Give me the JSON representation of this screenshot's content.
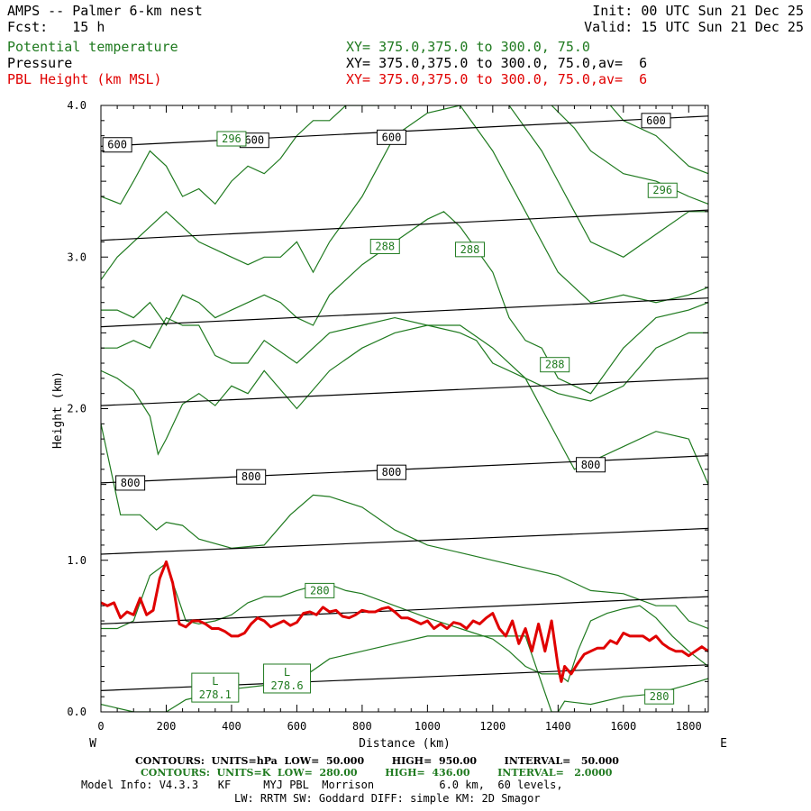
{
  "header": {
    "title": "AMPS -- Palmer 6-km nest",
    "fcst": "Fcst:   15 h",
    "init": "Init: 00 UTC Sun 21 Dec 25",
    "valid": "Valid: 15 UTC Sun 21 Dec 25",
    "fields": [
      {
        "name": "Potential temperature",
        "xy": "XY= 375.0,375.0 to 300.0, 75.0",
        "color": "#1f7a1f"
      },
      {
        "name": "Pressure",
        "xy": "XY= 375.0,375.0 to 300.0, 75.0,av=  6",
        "color": "#000000"
      },
      {
        "name": "PBL Height (km MSL)",
        "xy": "XY= 375.0,375.0 to 300.0, 75.0,av=  6",
        "color": "#e00000"
      }
    ]
  },
  "footer": {
    "contours_pressure": "CONTOURS:  UNITS=hPa  LOW=  50.000        HIGH=  950.00        INTERVAL=   50.000",
    "contours_theta": "CONTOURS:  UNITS=K  LOW=  280.00        HIGH=  436.00        INTERVAL=   2.0000",
    "model_info": "Model Info: V4.3.3   KF     MYJ PBL  Morrison          6.0 km,  60 levels,",
    "model_info2": "LW: RRTM SW: Goddard DIFF: simple KM: 2D Smagor"
  },
  "chart_data": {
    "type": "line",
    "xlabel": "Distance (km)",
    "ylabel": "Height (km)",
    "xlim": [
      0,
      1860
    ],
    "ylim": [
      0,
      4.0
    ],
    "xticks": [
      0,
      200,
      400,
      600,
      800,
      1000,
      1200,
      1400,
      1600,
      1800
    ],
    "yticks": [
      0.0,
      1.0,
      2.0,
      3.0,
      4.0
    ],
    "ytick_labels": [
      "0.0",
      "1.0",
      "2.0",
      "3.0",
      "4.0"
    ],
    "left_end_label": "W",
    "right_end_label": "E",
    "colors": {
      "theta": "#1f7a1f",
      "pressure": "#000000",
      "pbl": "#e00000"
    },
    "pressure_isobars": [
      {
        "value": 950,
        "x": [
          0,
          1860
        ],
        "y": [
          0.14,
          0.31
        ]
      },
      {
        "value": 900,
        "x": [
          0,
          1860
        ],
        "y": [
          0.58,
          0.76
        ]
      },
      {
        "value": 850,
        "x": [
          0,
          1860
        ],
        "y": [
          1.04,
          1.21
        ]
      },
      {
        "value": 800,
        "x": [
          0,
          1860
        ],
        "y": [
          1.51,
          1.69
        ]
      },
      {
        "value": 750,
        "x": [
          0,
          1860
        ],
        "y": [
          2.02,
          2.2
        ]
      },
      {
        "value": 700,
        "x": [
          0,
          1860
        ],
        "y": [
          2.54,
          2.73
        ]
      },
      {
        "value": 650,
        "x": [
          0,
          1860
        ],
        "y": [
          3.11,
          3.31
        ]
      },
      {
        "value": 600,
        "x": [
          0,
          1860
        ],
        "y": [
          3.73,
          3.93
        ]
      }
    ],
    "isobar_labels": [
      {
        "text": "600",
        "x": 50,
        "y": 3.74
      },
      {
        "text": "600",
        "x": 470,
        "y": 3.77
      },
      {
        "text": "600",
        "x": 890,
        "y": 3.79
      },
      {
        "text": "600",
        "x": 1700,
        "y": 3.9
      },
      {
        "text": "800",
        "x": 90,
        "y": 1.51
      },
      {
        "text": "800",
        "x": 460,
        "y": 1.55
      },
      {
        "text": "800",
        "x": 890,
        "y": 1.58
      },
      {
        "text": "800",
        "x": 1500,
        "y": 1.63
      }
    ],
    "theta_isentropes": [
      {
        "x": [
          0,
          100,
          200,
          260,
          300,
          400,
          600,
          700,
          800,
          900,
          1000,
          1100,
          1200,
          1300,
          1380,
          1400,
          1420,
          1500,
          1600,
          1700,
          1800,
          1860
        ],
        "y": [
          0.05,
          0.0,
          0.0,
          0.08,
          0.1,
          0.15,
          0.2,
          0.35,
          0.4,
          0.45,
          0.5,
          0.5,
          0.5,
          0.5,
          0.0,
          0.0,
          0.07,
          0.05,
          0.1,
          0.12,
          0.18,
          0.22
        ]
      },
      {
        "x": [
          0,
          50,
          100,
          150,
          200,
          260,
          300,
          350,
          400,
          450,
          500,
          550,
          600,
          650,
          700,
          750,
          800,
          900,
          1000,
          1100,
          1200,
          1250,
          1300,
          1350,
          1400,
          1430,
          1460,
          1500,
          1550,
          1600,
          1650,
          1700,
          1750,
          1800,
          1860
        ],
        "y": [
          0.55,
          0.55,
          0.6,
          0.9,
          0.98,
          0.6,
          0.58,
          0.6,
          0.64,
          0.72,
          0.76,
          0.76,
          0.8,
          0.83,
          0.84,
          0.8,
          0.78,
          0.7,
          0.62,
          0.55,
          0.48,
          0.4,
          0.3,
          0.25,
          0.25,
          0.2,
          0.4,
          0.6,
          0.65,
          0.68,
          0.7,
          0.62,
          0.5,
          0.4,
          0.3
        ]
      },
      {
        "x": [
          0,
          60,
          120,
          170,
          200,
          250,
          300,
          400,
          500,
          580,
          650,
          700,
          800,
          900,
          1000,
          1100,
          1200,
          1300,
          1400,
          1450,
          1500,
          1600,
          1700,
          1760,
          1800,
          1860
        ],
        "y": [
          1.9,
          1.3,
          1.3,
          1.2,
          1.25,
          1.23,
          1.14,
          1.08,
          1.1,
          1.3,
          1.43,
          1.42,
          1.35,
          1.2,
          1.1,
          1.05,
          1.0,
          0.95,
          0.9,
          0.85,
          0.8,
          0.78,
          0.7,
          0.7,
          0.6,
          0.55
        ]
      },
      {
        "x": [
          0,
          50,
          100,
          150,
          175,
          200,
          250,
          300,
          350,
          400,
          450,
          500,
          600,
          700,
          800,
          900,
          1000,
          1100,
          1200,
          1300,
          1400,
          1450,
          1500,
          1600,
          1700,
          1800,
          1860
        ],
        "y": [
          2.25,
          2.2,
          2.12,
          1.95,
          1.7,
          1.8,
          2.03,
          2.1,
          2.02,
          2.15,
          2.1,
          2.25,
          2.0,
          2.25,
          2.4,
          2.5,
          2.55,
          2.55,
          2.4,
          2.2,
          1.8,
          1.6,
          1.65,
          1.75,
          1.85,
          1.8,
          1.5
        ]
      },
      {
        "x": [
          0,
          50,
          100,
          150,
          200,
          250,
          300,
          350,
          400,
          450,
          500,
          600,
          700,
          800,
          900,
          1000,
          1100,
          1150,
          1200,
          1300,
          1400,
          1500,
          1600,
          1700,
          1800,
          1860
        ],
        "y": [
          2.4,
          2.4,
          2.45,
          2.4,
          2.6,
          2.55,
          2.55,
          2.35,
          2.3,
          2.3,
          2.45,
          2.3,
          2.5,
          2.55,
          2.6,
          2.55,
          2.5,
          2.45,
          2.3,
          2.2,
          2.1,
          2.05,
          2.15,
          2.4,
          2.5,
          2.5
        ]
      },
      {
        "x": [
          0,
          50,
          100,
          150,
          200,
          250,
          300,
          350,
          400,
          450,
          500,
          550,
          600,
          650,
          700,
          800,
          900,
          1000,
          1050,
          1100,
          1200,
          1250,
          1300,
          1350,
          1400,
          1500,
          1600,
          1700,
          1800,
          1860
        ],
        "y": [
          2.65,
          2.65,
          2.6,
          2.7,
          2.55,
          2.75,
          2.7,
          2.6,
          2.65,
          2.7,
          2.75,
          2.7,
          2.6,
          2.55,
          2.75,
          2.95,
          3.1,
          3.25,
          3.3,
          3.2,
          2.9,
          2.6,
          2.45,
          2.4,
          2.2,
          2.1,
          2.4,
          2.6,
          2.65,
          2.7
        ]
      },
      {
        "x": [
          0,
          50,
          100,
          150,
          200,
          250,
          300,
          350,
          400,
          450,
          500,
          550,
          600,
          650,
          700,
          800,
          850,
          900,
          1000,
          1100,
          1200,
          1300,
          1400,
          1500,
          1600,
          1700,
          1800,
          1860
        ],
        "y": [
          2.85,
          3.0,
          3.1,
          3.2,
          3.3,
          3.2,
          3.1,
          3.05,
          3.0,
          2.95,
          3.0,
          3.0,
          3.1,
          2.9,
          3.1,
          3.4,
          3.6,
          3.8,
          3.95,
          4.0,
          3.7,
          3.3,
          2.9,
          2.7,
          2.75,
          2.7,
          2.75,
          2.8
        ]
      },
      {
        "x": [
          0,
          60,
          100,
          150,
          200,
          250,
          300,
          350,
          400,
          450,
          500,
          550,
          600,
          650,
          700,
          750,
          800,
          850
        ],
        "y": [
          3.4,
          3.35,
          3.5,
          3.7,
          3.6,
          3.4,
          3.45,
          3.35,
          3.5,
          3.6,
          3.55,
          3.65,
          3.8,
          3.9,
          3.9,
          4.0,
          4.0,
          4.0
        ]
      },
      {
        "x": [
          1250,
          1300,
          1350,
          1400,
          1450,
          1500,
          1600,
          1700,
          1800,
          1860
        ],
        "y": [
          4.0,
          3.85,
          3.7,
          3.5,
          3.3,
          3.1,
          3.0,
          3.15,
          3.3,
          3.3
        ]
      },
      {
        "x": [
          1380,
          1450,
          1500,
          1600,
          1700,
          1800,
          1860
        ],
        "y": [
          4.0,
          3.85,
          3.7,
          3.55,
          3.5,
          3.4,
          3.35
        ]
      },
      {
        "x": [
          1560,
          1600,
          1700,
          1800,
          1860
        ],
        "y": [
          4.0,
          3.9,
          3.8,
          3.6,
          3.55
        ]
      }
    ],
    "theta_labels": [
      {
        "text": "296",
        "x": 400,
        "y": 3.78
      },
      {
        "text": "296",
        "x": 1720,
        "y": 3.44
      },
      {
        "text": "288",
        "x": 870,
        "y": 3.07
      },
      {
        "text": "288",
        "x": 1130,
        "y": 3.05
      },
      {
        "text": "288",
        "x": 1390,
        "y": 2.29
      },
      {
        "text": "280",
        "x": 670,
        "y": 0.8
      },
      {
        "text": "280",
        "x": 1710,
        "y": 0.1
      }
    ],
    "minima": [
      {
        "symbol": "L",
        "value": "278.1",
        "x": 350,
        "y": 0.16
      },
      {
        "symbol": "L",
        "value": "278.6",
        "x": 570,
        "y": 0.22
      }
    ],
    "pbl_height": {
      "x": [
        0,
        20,
        40,
        60,
        80,
        100,
        120,
        140,
        160,
        180,
        200,
        220,
        240,
        260,
        280,
        300,
        320,
        340,
        360,
        380,
        400,
        420,
        440,
        460,
        480,
        500,
        520,
        540,
        560,
        580,
        600,
        620,
        640,
        660,
        680,
        700,
        720,
        740,
        760,
        780,
        800,
        820,
        840,
        860,
        880,
        900,
        920,
        940,
        960,
        980,
        1000,
        1020,
        1040,
        1060,
        1080,
        1100,
        1120,
        1140,
        1160,
        1180,
        1200,
        1220,
        1240,
        1260,
        1280,
        1300,
        1320,
        1340,
        1360,
        1380,
        1400,
        1410,
        1420,
        1440,
        1460,
        1480,
        1500,
        1520,
        1540,
        1560,
        1580,
        1600,
        1620,
        1640,
        1660,
        1680,
        1700,
        1720,
        1740,
        1760,
        1780,
        1800,
        1820,
        1840,
        1860
      ],
      "y": [
        0.72,
        0.7,
        0.72,
        0.62,
        0.66,
        0.64,
        0.75,
        0.64,
        0.67,
        0.88,
        0.99,
        0.85,
        0.58,
        0.56,
        0.6,
        0.6,
        0.58,
        0.55,
        0.55,
        0.53,
        0.5,
        0.5,
        0.52,
        0.58,
        0.62,
        0.6,
        0.56,
        0.58,
        0.6,
        0.57,
        0.59,
        0.65,
        0.66,
        0.64,
        0.69,
        0.66,
        0.67,
        0.63,
        0.62,
        0.64,
        0.67,
        0.66,
        0.66,
        0.68,
        0.69,
        0.66,
        0.62,
        0.62,
        0.6,
        0.58,
        0.6,
        0.55,
        0.58,
        0.55,
        0.59,
        0.58,
        0.55,
        0.6,
        0.58,
        0.62,
        0.65,
        0.55,
        0.5,
        0.6,
        0.45,
        0.55,
        0.4,
        0.58,
        0.4,
        0.6,
        0.3,
        0.2,
        0.3,
        0.25,
        0.32,
        0.38,
        0.4,
        0.42,
        0.42,
        0.47,
        0.45,
        0.52,
        0.5,
        0.5,
        0.5,
        0.47,
        0.5,
        0.45,
        0.42,
        0.4,
        0.4,
        0.37,
        0.4,
        0.43,
        0.4
      ]
    }
  }
}
